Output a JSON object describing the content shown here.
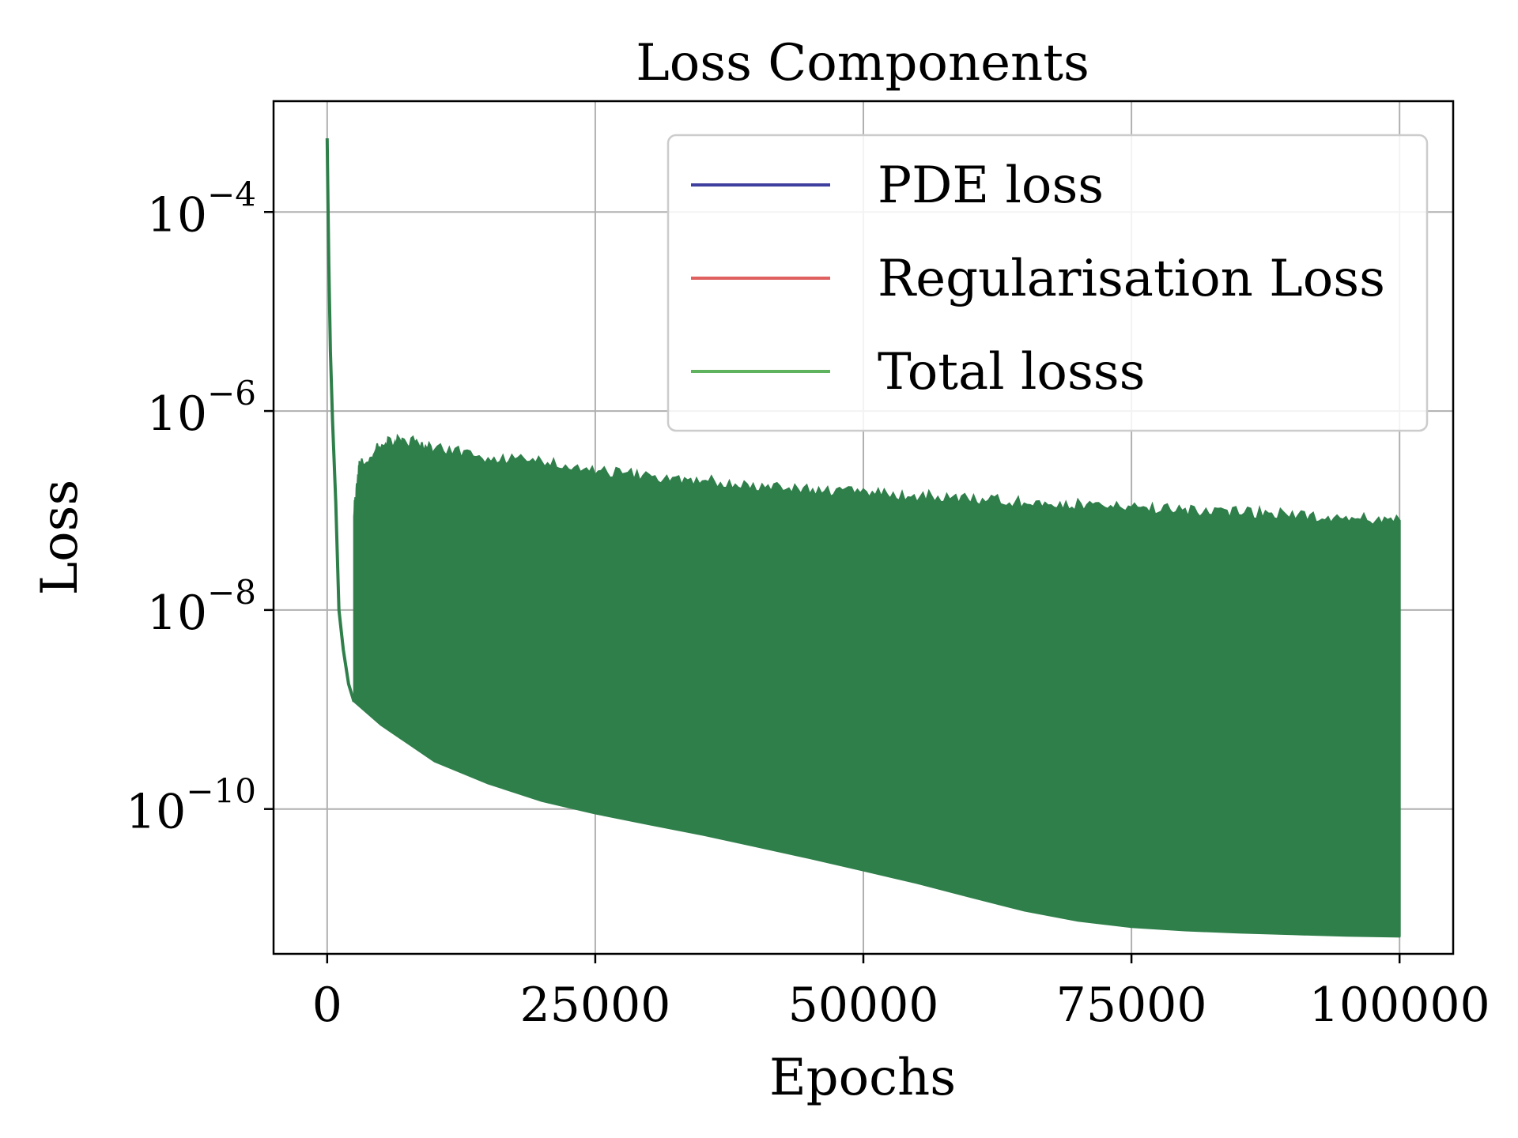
{
  "chart_data": {
    "type": "line",
    "title": "Loss Components",
    "xlabel": "Epochs",
    "ylabel": "Loss",
    "y_scale": "log",
    "xlim": [
      -5000,
      105000
    ],
    "ylim": [
      3.5e-12,
      0.0013
    ],
    "x_ticks": [
      {
        "value": 0,
        "label": "0"
      },
      {
        "value": 25000,
        "label": "25000"
      },
      {
        "value": 50000,
        "label": "50000"
      },
      {
        "value": 75000,
        "label": "75000"
      },
      {
        "value": 100000,
        "label": "100000"
      }
    ],
    "y_ticks": [
      {
        "value": 0.0001,
        "base": "10",
        "exp": "−4"
      },
      {
        "value": 1e-06,
        "base": "10",
        "exp": "−6"
      },
      {
        "value": 1e-08,
        "base": "10",
        "exp": "−8"
      },
      {
        "value": 1e-10,
        "base": "10",
        "exp": "−10"
      }
    ],
    "grid": true,
    "legend_position": "top-right",
    "series": [
      {
        "name": "PDE loss",
        "color": "#3f3f9f",
        "values": []
      },
      {
        "name": "Regularisation Loss",
        "color": "#e06060",
        "values": []
      },
      {
        "name": "Total losss",
        "color": "#5fb35f",
        "render_color": "#2f7f4a",
        "initial_descent": [
          [
            0,
            0.00055
          ],
          [
            50,
            0.0002
          ],
          [
            150,
            3e-05
          ],
          [
            300,
            4e-06
          ],
          [
            500,
            8e-07
          ],
          [
            800,
            1.2e-07
          ],
          [
            1100,
            1e-08
          ],
          [
            1500,
            4e-09
          ],
          [
            2000,
            1.8e-09
          ],
          [
            2500,
            1.2e-09
          ]
        ],
        "upper_envelope": [
          [
            2500,
            1e-07
          ],
          [
            3000,
            2.8e-07
          ],
          [
            5000,
            4.6e-07
          ],
          [
            7000,
            5.2e-07
          ],
          [
            10000,
            4.2e-07
          ],
          [
            15000,
            3.4e-07
          ],
          [
            20000,
            3e-07
          ],
          [
            25000,
            2.5e-07
          ],
          [
            30000,
            2.2e-07
          ],
          [
            35000,
            2e-07
          ],
          [
            40000,
            1.8e-07
          ],
          [
            45000,
            1.6e-07
          ],
          [
            50000,
            1.5e-07
          ],
          [
            55000,
            1.4e-07
          ],
          [
            60000,
            1.3e-07
          ],
          [
            65000,
            1.2e-07
          ],
          [
            70000,
            1.15e-07
          ],
          [
            75000,
            1.1e-07
          ],
          [
            80000,
            1e-07
          ],
          [
            85000,
            9.5e-08
          ],
          [
            90000,
            9e-08
          ],
          [
            95000,
            8.5e-08
          ],
          [
            100000,
            8e-08
          ]
        ],
        "lower_envelope": [
          [
            2500,
            1.2e-09
          ],
          [
            5000,
            7e-10
          ],
          [
            10000,
            3e-10
          ],
          [
            15000,
            1.8e-10
          ],
          [
            20000,
            1.2e-10
          ],
          [
            25000,
            9e-11
          ],
          [
            30000,
            7e-11
          ],
          [
            35000,
            5.5e-11
          ],
          [
            40000,
            4.2e-11
          ],
          [
            45000,
            3.2e-11
          ],
          [
            50000,
            2.4e-11
          ],
          [
            55000,
            1.8e-11
          ],
          [
            60000,
            1.3e-11
          ],
          [
            65000,
            9.5e-12
          ],
          [
            70000,
            7.5e-12
          ],
          [
            75000,
            6.5e-12
          ],
          [
            80000,
            6e-12
          ],
          [
            85000,
            5.7e-12
          ],
          [
            90000,
            5.5e-12
          ],
          [
            95000,
            5.3e-12
          ],
          [
            100000,
            5.2e-12
          ]
        ]
      }
    ]
  }
}
